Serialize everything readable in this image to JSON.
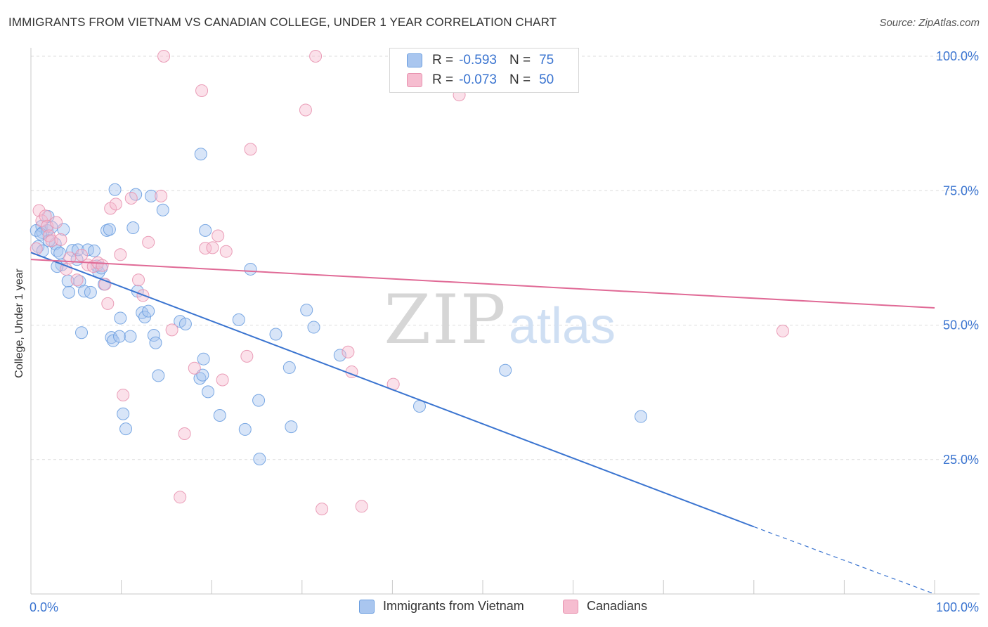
{
  "header": {
    "title": "IMMIGRANTS FROM VIETNAM VS CANADIAN COLLEGE, UNDER 1 YEAR CORRELATION CHART",
    "source": "Source: ZipAtlas.com"
  },
  "watermark": {
    "zip": "ZIP",
    "atlas": "atlas"
  },
  "legend": {
    "rows": [
      {
        "r_label": "R =",
        "r_value": "-0.593",
        "n_label": "N =",
        "n_value": "75",
        "color": "#a9c6ef",
        "border": "#6b9ee0"
      },
      {
        "r_label": "R =",
        "r_value": "-0.073",
        "n_label": "N =",
        "n_value": "50",
        "color": "#f6bdd0",
        "border": "#e893b0"
      }
    ]
  },
  "chart_data": {
    "type": "scatter",
    "title": "IMMIGRANTS FROM VIETNAM VS CANADIAN COLLEGE, UNDER 1 YEAR CORRELATION CHART",
    "xlabel": "",
    "ylabel": "College, Under 1 year",
    "xlim": [
      0,
      100
    ],
    "ylim": [
      0,
      100
    ],
    "x_tick_labels": [
      "0.0%",
      "100.0%"
    ],
    "y_tick_labels": [
      "25.0%",
      "50.0%",
      "75.0%",
      "100.0%"
    ],
    "y_ticks": [
      25,
      50,
      75,
      100
    ],
    "grid": true,
    "legend_position": "top-center",
    "series": [
      {
        "name": "Immigrants from Vietnam",
        "color": "#a9c6ef",
        "edge": "#6b9ee0",
        "trend_color": "#3a74d0",
        "trend": {
          "x0": 0,
          "y0": 63.5,
          "x1": 80,
          "y1": 12.5,
          "dash_to_x": 100,
          "dash_to_y": 0
        },
        "points": [
          [
            0.6,
            67.6
          ],
          [
            0.8,
            64.6
          ],
          [
            1.2,
            68.4
          ],
          [
            1.3,
            67.2
          ],
          [
            1.8,
            67.6
          ],
          [
            1.9,
            70.2
          ],
          [
            2.3,
            68.2
          ],
          [
            2.7,
            65.1
          ],
          [
            2.9,
            63.8
          ],
          [
            3.2,
            63.4
          ],
          [
            3.4,
            61.2
          ],
          [
            3.6,
            67.8
          ],
          [
            4.1,
            58.2
          ],
          [
            4.2,
            56.1
          ],
          [
            4.6,
            63.9
          ],
          [
            5.1,
            62.2
          ],
          [
            5.2,
            64.0
          ],
          [
            5.4,
            58.1
          ],
          [
            5.6,
            48.6
          ],
          [
            5.9,
            56.3
          ],
          [
            6.3,
            64.0
          ],
          [
            6.6,
            56.1
          ],
          [
            7.0,
            63.8
          ],
          [
            7.3,
            61.0
          ],
          [
            7.5,
            59.8
          ],
          [
            7.8,
            60.6
          ],
          [
            8.1,
            57.6
          ],
          [
            8.4,
            67.6
          ],
          [
            8.7,
            67.8
          ],
          [
            8.9,
            47.7
          ],
          [
            9.1,
            47.1
          ],
          [
            9.3,
            75.2
          ],
          [
            9.9,
            51.3
          ],
          [
            9.8,
            47.9
          ],
          [
            10.2,
            33.5
          ],
          [
            10.5,
            30.7
          ],
          [
            11.0,
            47.9
          ],
          [
            11.3,
            68.1
          ],
          [
            11.6,
            74.3
          ],
          [
            11.8,
            56.3
          ],
          [
            12.3,
            52.3
          ],
          [
            12.6,
            51.5
          ],
          [
            13.0,
            52.6
          ],
          [
            13.3,
            74.0
          ],
          [
            13.6,
            48.1
          ],
          [
            13.8,
            46.7
          ],
          [
            14.1,
            40.6
          ],
          [
            14.6,
            71.4
          ],
          [
            16.5,
            50.7
          ],
          [
            17.1,
            50.2
          ],
          [
            18.7,
            40.1
          ],
          [
            19.0,
            40.7
          ],
          [
            18.8,
            81.8
          ],
          [
            19.1,
            43.7
          ],
          [
            19.3,
            67.6
          ],
          [
            19.6,
            37.6
          ],
          [
            20.9,
            33.2
          ],
          [
            23.0,
            51.0
          ],
          [
            23.7,
            30.6
          ],
          [
            24.3,
            60.4
          ],
          [
            25.2,
            36.0
          ],
          [
            25.3,
            25.1
          ],
          [
            27.1,
            48.3
          ],
          [
            28.6,
            42.1
          ],
          [
            28.8,
            31.1
          ],
          [
            30.5,
            52.8
          ],
          [
            31.3,
            49.6
          ],
          [
            34.2,
            44.4
          ],
          [
            43.0,
            34.9
          ],
          [
            52.5,
            41.6
          ],
          [
            67.5,
            33.0
          ],
          [
            1.1,
            66.9
          ],
          [
            1.3,
            63.8
          ],
          [
            2.0,
            65.7
          ],
          [
            2.9,
            60.9
          ]
        ]
      },
      {
        "name": "Canadians",
        "color": "#f6bdd0",
        "edge": "#e893b0",
        "trend_color": "#e06a96",
        "trend": {
          "x0": 0,
          "y0": 62.2,
          "x1": 100,
          "y1": 53.2
        },
        "points": [
          [
            0.6,
            64.2
          ],
          [
            0.9,
            71.3
          ],
          [
            1.2,
            69.4
          ],
          [
            1.6,
            70.3
          ],
          [
            1.8,
            68.4
          ],
          [
            2.0,
            66.6
          ],
          [
            2.3,
            65.7
          ],
          [
            2.8,
            69.1
          ],
          [
            3.3,
            65.9
          ],
          [
            3.9,
            60.4
          ],
          [
            4.3,
            62.5
          ],
          [
            5.1,
            58.4
          ],
          [
            5.6,
            63.0
          ],
          [
            6.3,
            61.2
          ],
          [
            6.9,
            60.9
          ],
          [
            7.4,
            61.6
          ],
          [
            7.9,
            61.1
          ],
          [
            8.2,
            57.6
          ],
          [
            8.5,
            54.0
          ],
          [
            8.8,
            71.7
          ],
          [
            9.4,
            72.5
          ],
          [
            9.9,
            63.1
          ],
          [
            10.2,
            37.0
          ],
          [
            11.1,
            73.6
          ],
          [
            11.9,
            58.4
          ],
          [
            12.4,
            55.5
          ],
          [
            13.0,
            65.4
          ],
          [
            14.4,
            74.0
          ],
          [
            14.7,
            100.0
          ],
          [
            15.6,
            49.1
          ],
          [
            16.5,
            18.0
          ],
          [
            17.0,
            29.8
          ],
          [
            18.1,
            42.0
          ],
          [
            18.9,
            93.6
          ],
          [
            19.3,
            64.3
          ],
          [
            20.1,
            64.4
          ],
          [
            20.7,
            66.6
          ],
          [
            21.2,
            39.8
          ],
          [
            21.6,
            63.7
          ],
          [
            23.9,
            44.2
          ],
          [
            24.3,
            82.7
          ],
          [
            30.4,
            90.0
          ],
          [
            31.5,
            100.0
          ],
          [
            32.2,
            15.8
          ],
          [
            35.1,
            45.0
          ],
          [
            35.5,
            41.3
          ],
          [
            36.6,
            16.3
          ],
          [
            40.1,
            39.0
          ],
          [
            47.4,
            92.8
          ],
          [
            83.2,
            48.9
          ]
        ]
      }
    ]
  }
}
